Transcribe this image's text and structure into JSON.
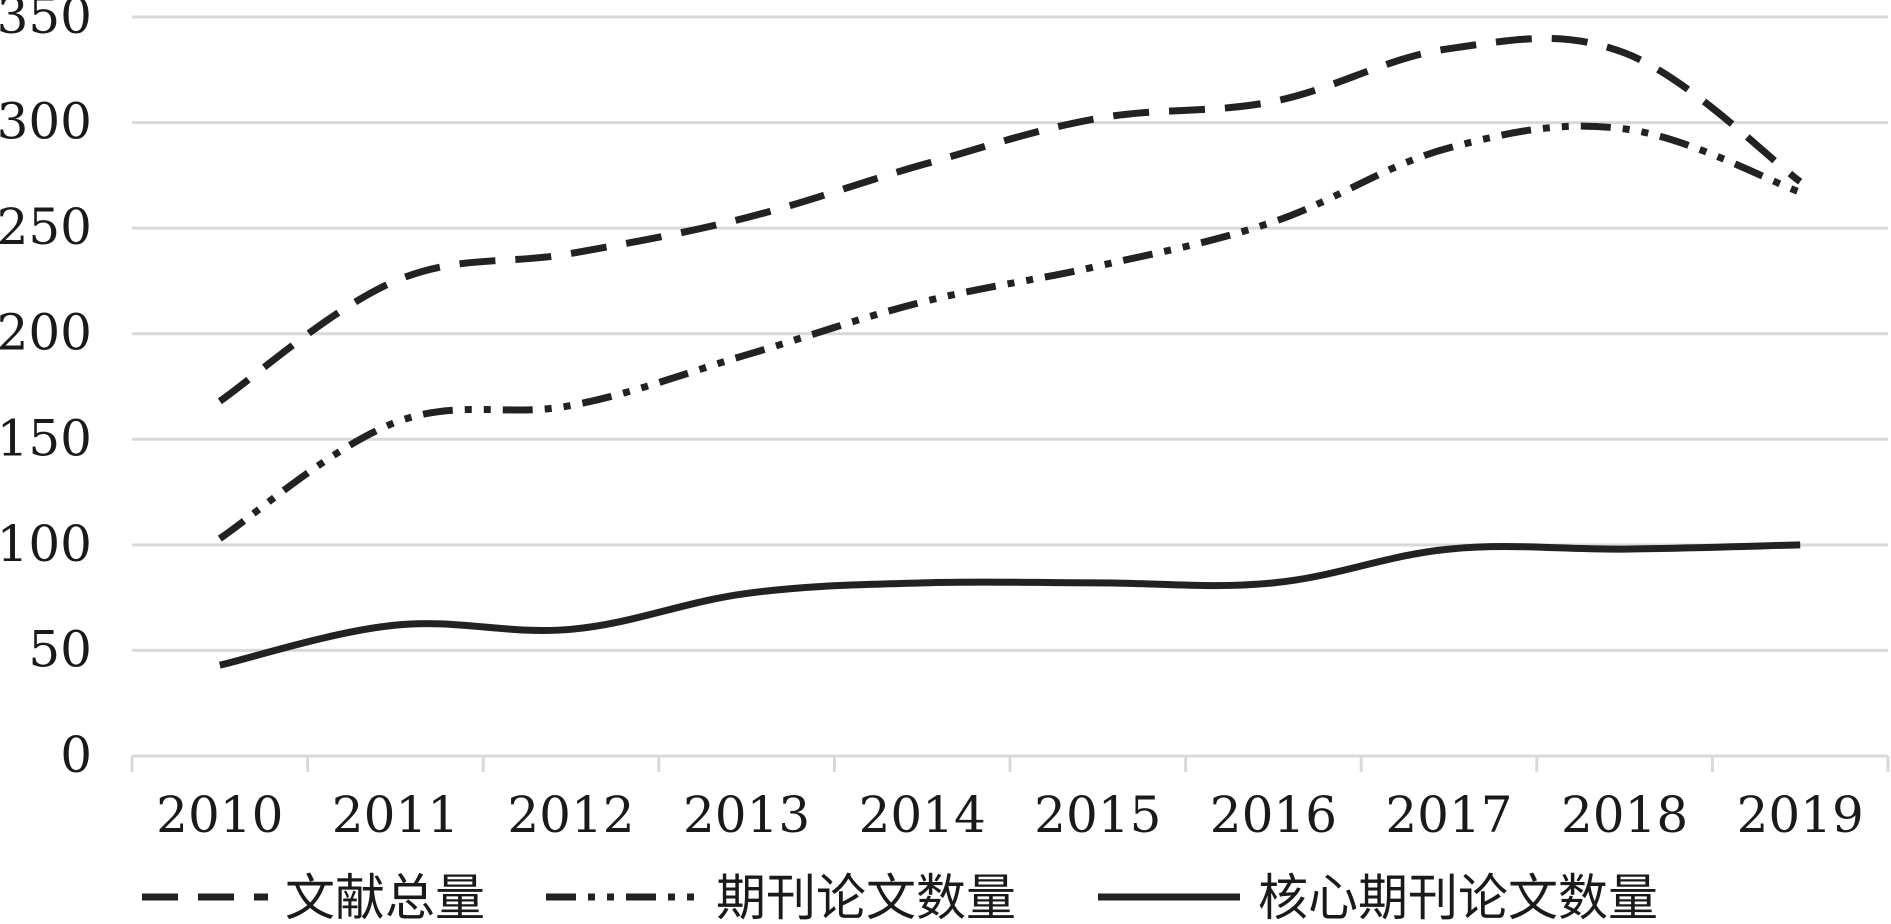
{
  "chart_data": {
    "type": "line",
    "title": "",
    "xlabel": "",
    "ylabel": "",
    "categories": [
      "2010",
      "2011",
      "2012",
      "2013",
      "2014",
      "2015",
      "2016",
      "2017",
      "2018",
      "2019"
    ],
    "ylim": [
      0,
      350
    ],
    "yticks": [
      "0",
      "50",
      "100",
      "150",
      "200",
      "250",
      "300",
      "350"
    ],
    "grid": true,
    "legend": "bottom",
    "series": [
      {
        "name": "文献总量",
        "style": "dashed",
        "color": "#222222",
        "values": [
          168,
          225,
          238,
          255,
          280,
          302,
          310,
          335,
          333,
          272
        ]
      },
      {
        "name": "期刊论文数量",
        "style": "dash-dot-dot",
        "color": "#222222",
        "values": [
          103,
          158,
          166,
          190,
          215,
          232,
          253,
          288,
          297,
          267
        ]
      },
      {
        "name": "核心期刊论文数量",
        "style": "solid",
        "color": "#222222",
        "values": [
          43,
          62,
          60,
          77,
          82,
          82,
          82,
          98,
          98,
          100
        ]
      }
    ]
  }
}
